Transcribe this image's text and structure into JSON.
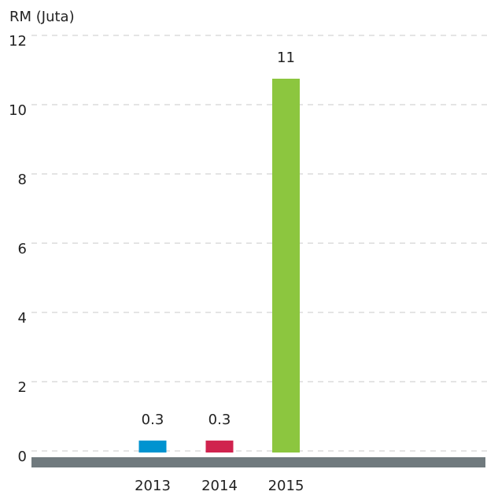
{
  "chart_data": {
    "type": "bar",
    "y_axis_label": "RM (Juta)",
    "categories": [
      "2013",
      "2014",
      "2015"
    ],
    "values": [
      0.3,
      0.3,
      10.75
    ],
    "value_labels": [
      "0.3",
      "0.3",
      "11"
    ],
    "colors": [
      "#0093d0",
      "#d0234e",
      "#8cc63f"
    ],
    "ylim": [
      0,
      12
    ],
    "yticks": [
      0,
      2,
      4,
      6,
      8,
      10,
      12
    ],
    "grid": true
  }
}
